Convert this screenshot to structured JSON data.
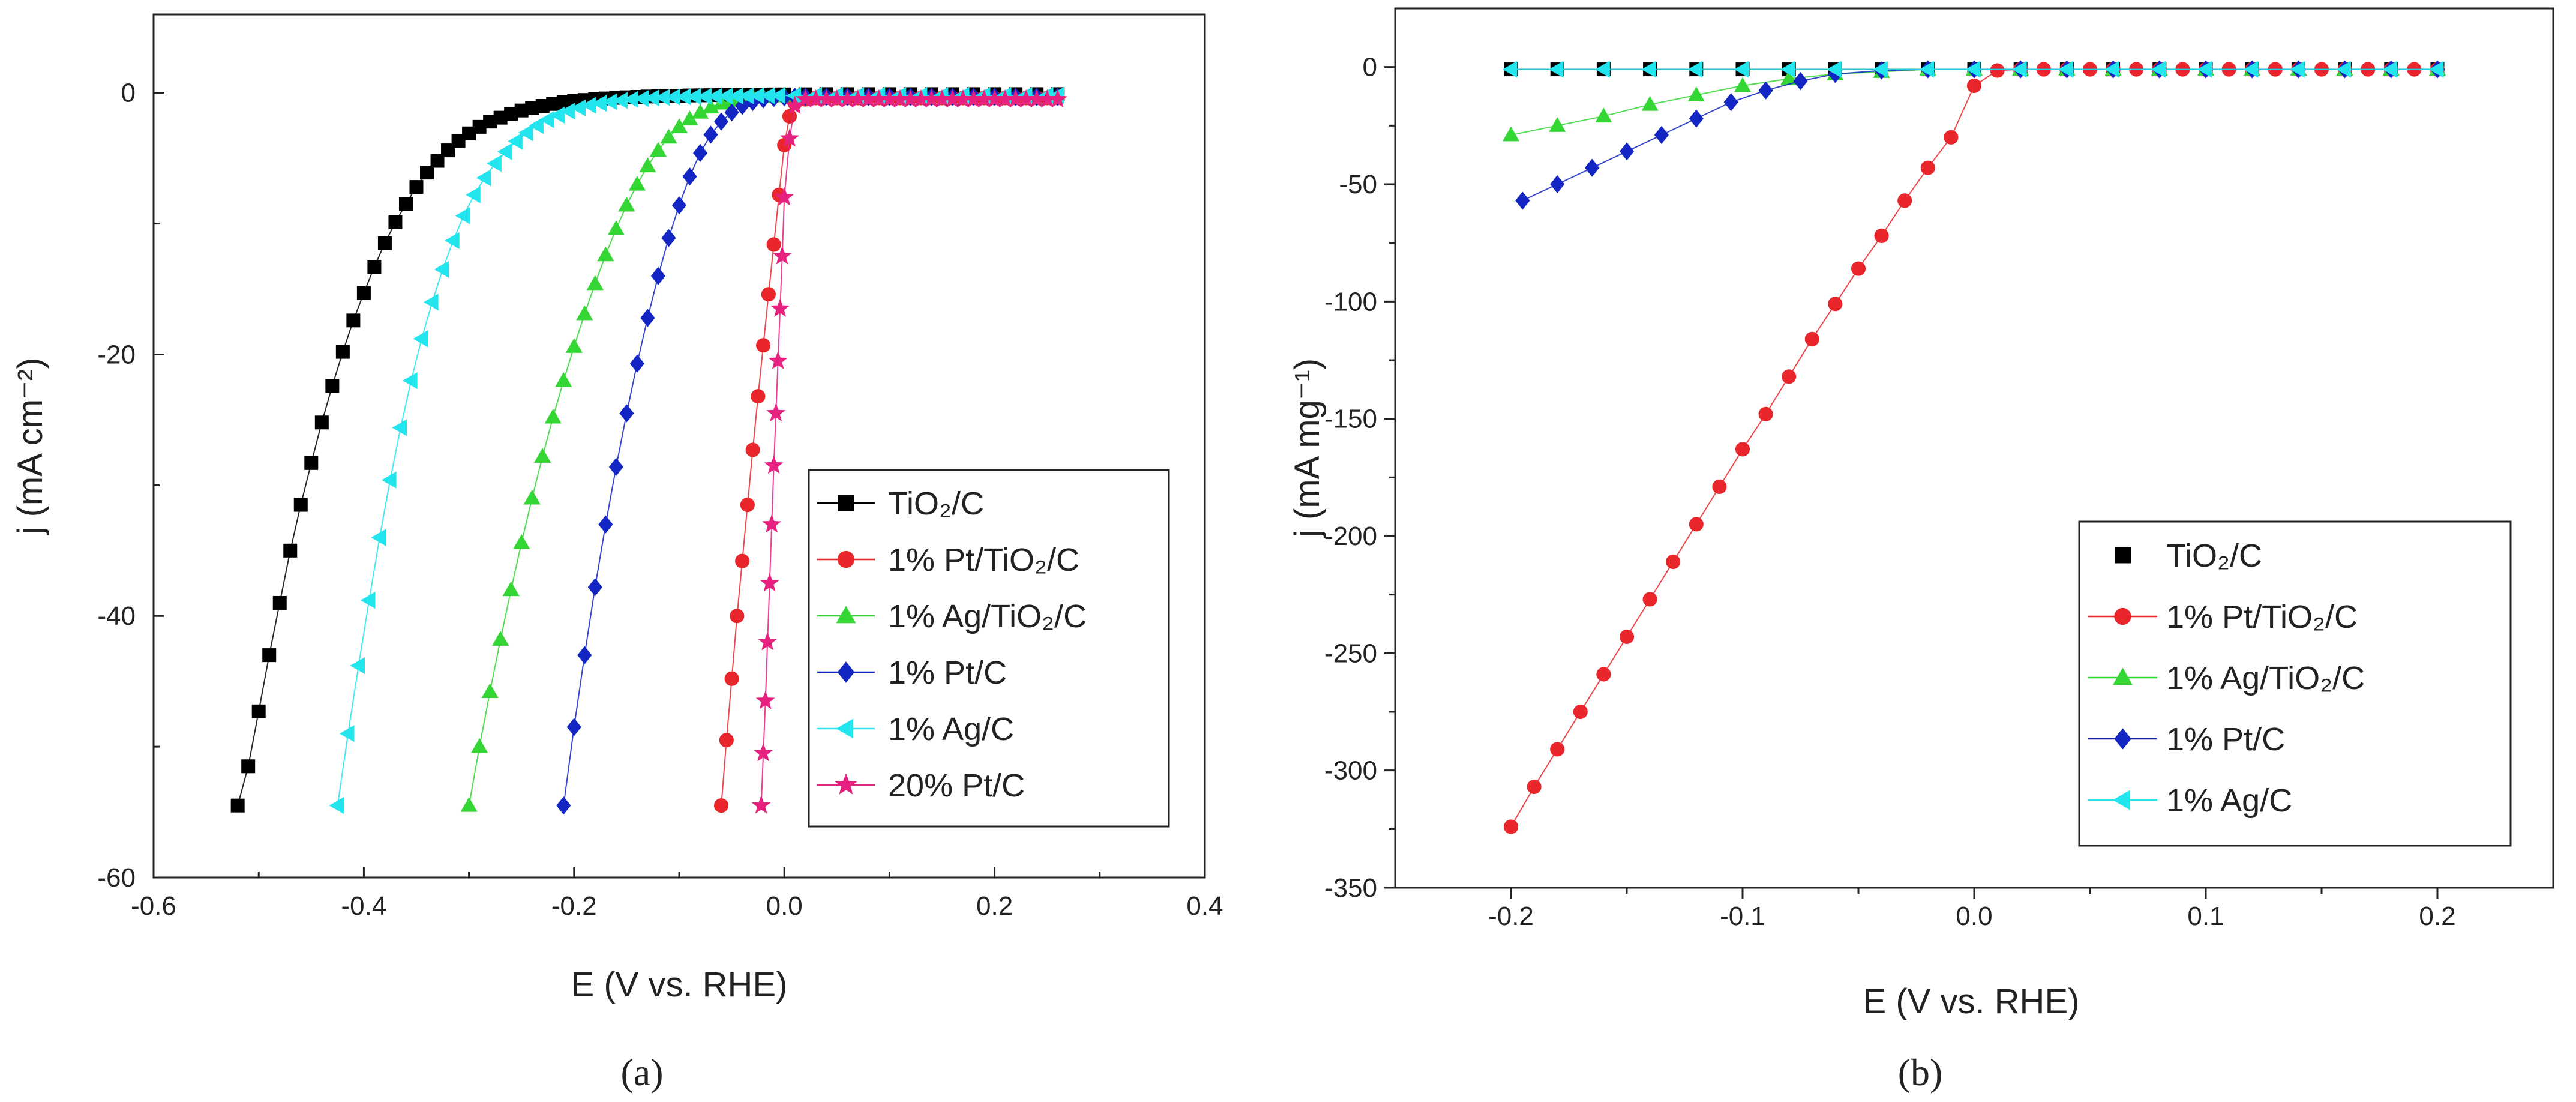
{
  "colors": {
    "tio2c": "#000000",
    "pt_tio2c": "#e8262b",
    "ag_tio2c": "#33d633",
    "ptc": "#1326c4",
    "agc": "#22e5ee",
    "pt20c": "#e6217f"
  },
  "chart_data": [
    {
      "type": "line",
      "panel_label": "a",
      "title": "",
      "xlabel": "E  (V vs. RHE)",
      "ylabel": "j  (mA cm⁻²)",
      "xlim": [
        -0.6,
        0.4
      ],
      "ylim": [
        -60,
        6
      ],
      "xticks": [
        -0.6,
        -0.4,
        -0.2,
        0.0,
        0.2,
        0.4
      ],
      "xtick_labels": [
        "-0.6",
        "-0.4",
        "-0.2",
        "0.0",
        "0.2",
        "0.4"
      ],
      "yticks": [
        -60,
        -40,
        -20,
        0
      ],
      "ytick_labels": [
        "-60",
        "-40",
        "-20",
        "0"
      ],
      "legend_position": "lower-right",
      "series": [
        {
          "name": "TiO₂/C",
          "color_key": "tio2c",
          "marker": "square",
          "x": [
            -0.52,
            -0.51,
            -0.5,
            -0.49,
            -0.48,
            -0.47,
            -0.46,
            -0.45,
            -0.44,
            -0.43,
            -0.42,
            -0.41,
            -0.4,
            -0.39,
            -0.38,
            -0.37,
            -0.36,
            -0.35,
            -0.34,
            -0.33,
            -0.32,
            -0.31,
            -0.3,
            -0.29,
            -0.28,
            -0.27,
            -0.26,
            -0.25,
            -0.24,
            -0.23,
            -0.22,
            -0.21,
            -0.2,
            -0.19,
            -0.18,
            -0.17,
            -0.16,
            -0.15,
            -0.14,
            -0.13,
            -0.12,
            -0.11,
            -0.1,
            -0.09,
            -0.08,
            -0.07,
            -0.06,
            -0.05,
            -0.04,
            -0.03,
            -0.02,
            -0.01,
            0.0,
            0.02,
            0.04,
            0.06,
            0.08,
            0.1,
            0.12,
            0.14,
            0.16,
            0.18,
            0.2,
            0.22,
            0.24,
            0.26
          ],
          "y": [
            -54.5,
            -51.5,
            -47.3,
            -43.0,
            -39.0,
            -35.0,
            -31.5,
            -28.3,
            -25.2,
            -22.4,
            -19.8,
            -17.4,
            -15.3,
            -13.3,
            -11.5,
            -9.9,
            -8.5,
            -7.2,
            -6.1,
            -5.2,
            -4.4,
            -3.7,
            -3.1,
            -2.6,
            -2.2,
            -1.9,
            -1.6,
            -1.35,
            -1.15,
            -1.0,
            -0.85,
            -0.72,
            -0.62,
            -0.55,
            -0.48,
            -0.43,
            -0.38,
            -0.34,
            -0.31,
            -0.28,
            -0.26,
            -0.24,
            -0.22,
            -0.2,
            -0.19,
            -0.18,
            -0.17,
            -0.16,
            -0.15,
            -0.14,
            -0.13,
            -0.12,
            -0.12,
            -0.11,
            -0.1,
            -0.1,
            -0.1,
            -0.1,
            -0.1,
            -0.1,
            -0.1,
            -0.1,
            -0.1,
            -0.1,
            -0.1,
            -0.1
          ]
        },
        {
          "name": "1% Pt/TiO₂/C",
          "color_key": "pt_tio2c",
          "marker": "circle",
          "x": [
            -0.06,
            -0.055,
            -0.05,
            -0.045,
            -0.04,
            -0.035,
            -0.03,
            -0.025,
            -0.02,
            -0.015,
            -0.01,
            -0.005,
            0.0,
            0.005,
            0.01,
            0.02,
            0.03,
            0.04,
            0.05,
            0.06,
            0.07,
            0.08,
            0.09,
            0.1,
            0.11,
            0.12,
            0.13,
            0.14,
            0.15,
            0.16,
            0.17,
            0.18,
            0.19,
            0.2,
            0.21,
            0.22,
            0.23,
            0.24,
            0.25,
            0.26
          ],
          "y": [
            -54.5,
            -49.5,
            -44.8,
            -40.0,
            -35.8,
            -31.5,
            -27.3,
            -23.2,
            -19.3,
            -15.4,
            -11.6,
            -7.8,
            -4.0,
            -1.8,
            -0.8,
            -0.5,
            -0.4,
            -0.4,
            -0.4,
            -0.4,
            -0.4,
            -0.4,
            -0.4,
            -0.4,
            -0.4,
            -0.4,
            -0.4,
            -0.4,
            -0.4,
            -0.4,
            -0.4,
            -0.4,
            -0.4,
            -0.4,
            -0.4,
            -0.4,
            -0.4,
            -0.4,
            -0.4,
            -0.4
          ]
        },
        {
          "name": "1% Ag/TiO₂/C",
          "color_key": "ag_tio2c",
          "marker": "triangle-up",
          "x": [
            -0.3,
            -0.29,
            -0.28,
            -0.27,
            -0.26,
            -0.25,
            -0.24,
            -0.23,
            -0.22,
            -0.21,
            -0.2,
            -0.19,
            -0.18,
            -0.17,
            -0.16,
            -0.15,
            -0.14,
            -0.13,
            -0.12,
            -0.11,
            -0.1,
            -0.09,
            -0.08,
            -0.07,
            -0.06,
            -0.05,
            -0.04,
            -0.03,
            -0.02,
            -0.01,
            0.0
          ],
          "y": [
            -54.5,
            -50.0,
            -45.8,
            -41.8,
            -38.0,
            -34.4,
            -31.0,
            -27.8,
            -24.8,
            -22.0,
            -19.4,
            -16.9,
            -14.6,
            -12.4,
            -10.4,
            -8.6,
            -7.0,
            -5.6,
            -4.4,
            -3.4,
            -2.6,
            -2.0,
            -1.5,
            -1.1,
            -0.8,
            -0.6,
            -0.45,
            -0.35,
            -0.3,
            -0.25,
            -0.2
          ]
        },
        {
          "name": "1% Pt/C",
          "color_key": "ptc",
          "marker": "diamond",
          "x": [
            -0.21,
            -0.2,
            -0.19,
            -0.18,
            -0.17,
            -0.16,
            -0.15,
            -0.14,
            -0.13,
            -0.12,
            -0.11,
            -0.1,
            -0.09,
            -0.08,
            -0.07,
            -0.06,
            -0.05,
            -0.04,
            -0.03,
            -0.02,
            -0.01,
            0.0,
            0.01,
            0.02,
            0.04,
            0.06,
            0.08,
            0.1,
            0.12,
            0.14,
            0.16,
            0.18,
            0.2,
            0.22,
            0.24,
            0.26
          ],
          "y": [
            -54.5,
            -48.5,
            -43.0,
            -37.8,
            -33.0,
            -28.6,
            -24.5,
            -20.7,
            -17.2,
            -14.0,
            -11.1,
            -8.6,
            -6.4,
            -4.6,
            -3.2,
            -2.2,
            -1.5,
            -1.0,
            -0.7,
            -0.5,
            -0.4,
            -0.35,
            -0.3,
            -0.3,
            -0.3,
            -0.3,
            -0.3,
            -0.3,
            -0.3,
            -0.3,
            -0.3,
            -0.3,
            -0.3,
            -0.3,
            -0.3,
            -0.3
          ]
        },
        {
          "name": "1% Ag/C",
          "color_key": "agc",
          "marker": "triangle-left",
          "x": [
            -0.425,
            -0.415,
            -0.405,
            -0.395,
            -0.385,
            -0.375,
            -0.365,
            -0.355,
            -0.345,
            -0.335,
            -0.325,
            -0.315,
            -0.305,
            -0.295,
            -0.285,
            -0.275,
            -0.265,
            -0.255,
            -0.245,
            -0.235,
            -0.225,
            -0.215,
            -0.205,
            -0.195,
            -0.185,
            -0.175,
            -0.165,
            -0.155,
            -0.145,
            -0.135,
            -0.125,
            -0.115,
            -0.105,
            -0.095,
            -0.085,
            -0.075,
            -0.065,
            -0.055,
            -0.045,
            -0.035,
            -0.025,
            -0.015,
            -0.005,
            0.01,
            0.03,
            0.05,
            0.07,
            0.09,
            0.11,
            0.13,
            0.15,
            0.17,
            0.19,
            0.21,
            0.23,
            0.25,
            0.26
          ],
          "y": [
            -54.5,
            -49.0,
            -43.8,
            -38.8,
            -34.0,
            -29.6,
            -25.6,
            -22.0,
            -18.8,
            -16.0,
            -13.5,
            -11.3,
            -9.4,
            -7.8,
            -6.5,
            -5.4,
            -4.5,
            -3.7,
            -3.05,
            -2.5,
            -2.05,
            -1.7,
            -1.4,
            -1.15,
            -0.95,
            -0.8,
            -0.68,
            -0.58,
            -0.5,
            -0.44,
            -0.39,
            -0.35,
            -0.32,
            -0.3,
            -0.28,
            -0.27,
            -0.26,
            -0.25,
            -0.24,
            -0.23,
            -0.22,
            -0.22,
            -0.21,
            -0.21,
            -0.2,
            -0.2,
            -0.2,
            -0.2,
            -0.2,
            -0.2,
            -0.2,
            -0.2,
            -0.2,
            -0.2,
            -0.2,
            -0.2,
            -0.2
          ]
        },
        {
          "name": "20% Pt/C",
          "color_key": "pt20c",
          "marker": "star",
          "x": [
            -0.022,
            -0.02,
            -0.018,
            -0.016,
            -0.014,
            -0.012,
            -0.01,
            -0.008,
            -0.006,
            -0.004,
            -0.002,
            0.0,
            0.005,
            0.01,
            0.02,
            0.03,
            0.04,
            0.05,
            0.06,
            0.07,
            0.08,
            0.09,
            0.1,
            0.11,
            0.12,
            0.13,
            0.14,
            0.15,
            0.16,
            0.17,
            0.18,
            0.19,
            0.2,
            0.21,
            0.22,
            0.23,
            0.24,
            0.25,
            0.26
          ],
          "y": [
            -54.5,
            -50.5,
            -46.5,
            -42.0,
            -37.5,
            -33.0,
            -28.5,
            -24.5,
            -20.5,
            -16.5,
            -12.5,
            -8.0,
            -3.5,
            -1.0,
            -0.5,
            -0.5,
            -0.5,
            -0.5,
            -0.5,
            -0.5,
            -0.5,
            -0.5,
            -0.5,
            -0.5,
            -0.5,
            -0.5,
            -0.5,
            -0.5,
            -0.5,
            -0.5,
            -0.5,
            -0.5,
            -0.5,
            -0.5,
            -0.5,
            -0.5,
            -0.5,
            -0.5,
            -0.5
          ]
        }
      ]
    },
    {
      "type": "line",
      "panel_label": "b",
      "title": "",
      "xlabel": "E  (V vs. RHE)",
      "ylabel": "j  (mA mg⁻¹)",
      "xlim": [
        -0.25,
        0.25
      ],
      "ylim": [
        -350,
        25
      ],
      "xticks": [
        -0.2,
        -0.1,
        0.0,
        0.1,
        0.2
      ],
      "xtick_labels": [
        "-0.2",
        "-0.1",
        "0.0",
        "0.1",
        "0.2"
      ],
      "yticks": [
        -350,
        -300,
        -250,
        -200,
        -150,
        -100,
        -50,
        0
      ],
      "ytick_labels": [
        "-350",
        "-300",
        "-250",
        "-200",
        "-150",
        "-100",
        "-50",
        "0"
      ],
      "legend_position": "lower-right",
      "series": [
        {
          "name": "TiO₂/C",
          "color_key": "tio2c",
          "marker": "square",
          "x": [
            -0.2,
            -0.18,
            -0.16,
            -0.14,
            -0.12,
            -0.1,
            -0.08,
            -0.06,
            -0.04,
            -0.02,
            0.0,
            0.02,
            0.04,
            0.06,
            0.08,
            0.1,
            0.12,
            0.14,
            0.16,
            0.18,
            0.2
          ],
          "y": [
            -1,
            -1,
            -1,
            -1,
            -1,
            -1,
            -1,
            -1,
            -1,
            -1,
            -1,
            -1,
            -1,
            -1,
            -1,
            -1,
            -1,
            -1,
            -1,
            -1,
            -1
          ]
        },
        {
          "name": "1% Pt/TiO₂/C",
          "color_key": "pt_tio2c",
          "marker": "circle",
          "x": [
            -0.2,
            -0.19,
            -0.18,
            -0.17,
            -0.16,
            -0.15,
            -0.14,
            -0.13,
            -0.12,
            -0.11,
            -0.1,
            -0.09,
            -0.08,
            -0.07,
            -0.06,
            -0.05,
            -0.04,
            -0.03,
            -0.02,
            -0.01,
            0.0,
            0.01,
            0.02,
            0.03,
            0.04,
            0.05,
            0.06,
            0.07,
            0.08,
            0.09,
            0.1,
            0.11,
            0.12,
            0.13,
            0.14,
            0.15,
            0.16,
            0.17,
            0.18,
            0.19,
            0.2
          ],
          "y": [
            -324,
            -307,
            -291,
            -275,
            -259,
            -243,
            -227,
            -211,
            -195,
            -179,
            -163,
            -148,
            -132,
            -116,
            -101,
            -86,
            -72,
            -57,
            -43,
            -30,
            -8,
            -1.5,
            -1,
            -1,
            -1,
            -1,
            -1,
            -1,
            -1,
            -1,
            -1,
            -1,
            -1,
            -1,
            -1,
            -1,
            -1,
            -1,
            -1,
            -1,
            -1
          ]
        },
        {
          "name": "1% Ag/TiO₂/C",
          "color_key": "ag_tio2c",
          "marker": "triangle-up",
          "x": [
            -0.2,
            -0.18,
            -0.16,
            -0.14,
            -0.12,
            -0.1,
            -0.08,
            -0.06,
            -0.04,
            -0.02,
            0.0,
            0.02,
            0.04,
            0.06,
            0.08,
            0.1,
            0.12,
            0.14,
            0.16,
            0.18,
            0.2
          ],
          "y": [
            -29,
            -25,
            -21,
            -16,
            -12,
            -8,
            -5,
            -3,
            -2,
            -1,
            -1,
            -1,
            -1,
            -1,
            -1,
            -1,
            -1,
            -1,
            -1,
            -1,
            -1
          ]
        },
        {
          "name": "1% Pt/C",
          "color_key": "ptc",
          "marker": "diamond",
          "x": [
            -0.195,
            -0.18,
            -0.165,
            -0.15,
            -0.135,
            -0.12,
            -0.105,
            -0.09,
            -0.075,
            -0.06,
            -0.04,
            -0.02,
            0.0,
            0.02,
            0.04,
            0.06,
            0.08,
            0.1,
            0.12,
            0.14,
            0.16,
            0.18,
            0.2
          ],
          "y": [
            -57,
            -50,
            -43,
            -36,
            -29,
            -22,
            -15,
            -10,
            -6,
            -3,
            -1.5,
            -1,
            -1,
            -1,
            -1,
            -1,
            -1,
            -1,
            -1,
            -1,
            -1,
            -1,
            -1
          ]
        },
        {
          "name": "1% Ag/C",
          "color_key": "agc",
          "marker": "triangle-left",
          "x": [
            -0.2,
            -0.18,
            -0.16,
            -0.14,
            -0.12,
            -0.1,
            -0.08,
            -0.06,
            -0.04,
            -0.02,
            0.0,
            0.02,
            0.04,
            0.06,
            0.08,
            0.1,
            0.12,
            0.14,
            0.16,
            0.18,
            0.2
          ],
          "y": [
            -1,
            -1,
            -1,
            -1,
            -1,
            -1,
            -1,
            -1,
            -1,
            -1,
            -1,
            -1,
            -1,
            -1,
            -1,
            -1,
            -1,
            -1,
            -1,
            -1,
            -1
          ]
        }
      ]
    }
  ],
  "captions": [
    "(a)",
    "(b)"
  ]
}
